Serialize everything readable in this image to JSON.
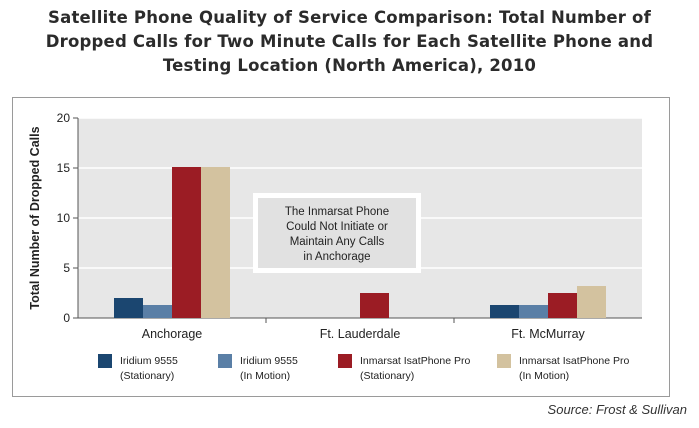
{
  "title_lines": [
    "Satellite Phone Quality of Service Comparison: Total Number of",
    "Dropped Calls for Two Minute Calls for Each Satellite Phone and",
    "Testing Location (North America), 2010"
  ],
  "source": "Source: Frost & Sullivan",
  "annotation_lines": [
    "The Inmarsat Phone",
    "Could Not Initiate or",
    "Maintain Any Calls",
    "in Anchorage"
  ],
  "colors": {
    "iridium_stationary": "#1b4670",
    "iridium_motion": "#5a7fa6",
    "inmarsat_stationary": "#9b1c24",
    "inmarsat_motion": "#d3c29f",
    "plot_bg": "#e7e7e7",
    "annotation_bg": "#e1e1e1"
  },
  "chart_data": {
    "type": "bar",
    "categories": [
      "Anchorage",
      "Ft. Lauderdale",
      "Ft. McMurray"
    ],
    "series": [
      {
        "name": "Iridium 9555 (Stationary)",
        "legend_lines": [
          "Iridium 9555",
          "(Stationary)"
        ],
        "values": [
          2,
          0,
          1.3
        ],
        "color_key": "iridium_stationary"
      },
      {
        "name": "Iridium 9555 (In Motion)",
        "legend_lines": [
          "Iridium 9555",
          "(In Motion)"
        ],
        "values": [
          1.3,
          0,
          1.3
        ],
        "color_key": "iridium_motion"
      },
      {
        "name": "Inmarsat IsatPhone Pro (Stationary)",
        "legend_lines": [
          "Inmarsat IsatPhone Pro",
          "(Stationary)"
        ],
        "values": [
          15.1,
          2.5,
          2.5
        ],
        "color_key": "inmarsat_stationary"
      },
      {
        "name": "Inmarsat IsatPhone Pro (In Motion)",
        "legend_lines": [
          "Inmarsat IsatPhone Pro",
          "(In Motion)"
        ],
        "values": [
          15.1,
          0,
          3.2
        ],
        "color_key": "inmarsat_motion"
      }
    ],
    "ylabel": "Total Number of Dropped Calls",
    "ylim": [
      0,
      20
    ],
    "yticks": [
      0,
      5,
      10,
      15,
      20
    ],
    "grid": true,
    "legend_position": "bottom"
  }
}
